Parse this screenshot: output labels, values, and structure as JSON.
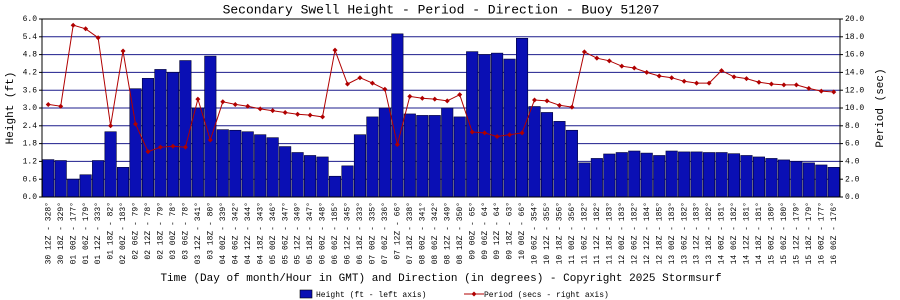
{
  "chart_data": {
    "type": "bar",
    "title": "Secondary Swell Height - Period - Direction - Buoy 51207",
    "x_label": "Time (Day of month/Hour in GMT) and Direction (in degrees) - Copyright 2025 Stormsurf",
    "y_label": "Height (ft)",
    "y2_label": "Period (sec)",
    "categories": [
      "30 12Z - 328°",
      "30 18Z - 329°",
      "01 00Z - 177°",
      "01 06Z - 179°",
      "01 12Z - 333°",
      "01 18Z - 82°",
      "02 00Z - 183°",
      "02 06Z - 79°",
      "02 12Z - 78°",
      "02 18Z - 79°",
      "03 00Z - 78°",
      "03 06Z - 78°",
      "03 12Z - 341°",
      "03 18Z - 80°",
      "04 00Z - 339°",
      "04 06Z - 342°",
      "04 12Z - 344°",
      "04 18Z - 343°",
      "05 00Z - 346°",
      "05 06Z - 347°",
      "05 12Z - 349°",
      "05 18Z - 347°",
      "06 00Z - 348°",
      "06 06Z - 185°",
      "06 12Z - 345°",
      "06 18Z - 333°",
      "07 00Z - 335°",
      "07 06Z - 336°",
      "07 12Z - 66°",
      "07 18Z - 338°",
      "08 00Z - 341°",
      "08 06Z - 342°",
      "08 12Z - 349°",
      "08 18Z - 350°",
      "09 00Z - 65°",
      "09 06Z - 64°",
      "09 12Z - 64°",
      "09 18Z - 63°",
      "10 00Z - 66°",
      "10 06Z - 354°",
      "10 12Z - 355°",
      "10 18Z - 356°",
      "11 00Z - 356°",
      "11 06Z - 182°",
      "11 12Z - 182°",
      "11 18Z - 183°",
      "12 00Z - 183°",
      "12 06Z - 182°",
      "12 12Z - 184°",
      "12 18Z - 185°",
      "13 00Z - 183°",
      "13 06Z - 182°",
      "13 12Z - 183°",
      "13 18Z - 182°",
      "14 00Z - 181°",
      "14 06Z - 182°",
      "14 12Z - 181°",
      "14 18Z - 181°",
      "15 00Z - 180°",
      "15 06Z - 180°",
      "15 12Z - 179°",
      "15 18Z - 179°",
      "16 00Z - 177°",
      "16 06Z - 176°"
    ],
    "series": [
      {
        "name": "Height (ft - left axis)",
        "type": "bar",
        "color": "#0a0fb4",
        "values": [
          1.26,
          1.23,
          0.6,
          0.75,
          1.23,
          2.2,
          1.0,
          3.65,
          4.0,
          4.3,
          4.2,
          4.6,
          3.0,
          4.75,
          2.27,
          2.25,
          2.2,
          2.1,
          2.0,
          1.7,
          1.5,
          1.4,
          1.35,
          0.7,
          1.05,
          2.1,
          2.7,
          3.0,
          5.5,
          2.8,
          2.75,
          2.75,
          3.0,
          2.7,
          4.9,
          4.8,
          4.85,
          4.65,
          5.35,
          3.05,
          2.85,
          2.55,
          2.25,
          1.15,
          1.3,
          1.45,
          1.5,
          1.55,
          1.48,
          1.4,
          1.55,
          1.52,
          1.52,
          1.5,
          1.5,
          1.46,
          1.4,
          1.35,
          1.3,
          1.25,
          1.2,
          1.15,
          1.08,
          1.0
        ]
      },
      {
        "name": "Period (secs - right axis)",
        "type": "line",
        "axis": "y2",
        "color": "#b00000",
        "values": [
          10.4,
          10.2,
          19.3,
          18.9,
          17.9,
          8.0,
          16.4,
          8.2,
          5.1,
          5.6,
          5.7,
          5.6,
          11.0,
          6.4,
          10.7,
          10.4,
          10.2,
          9.9,
          9.7,
          9.5,
          9.3,
          9.2,
          9.0,
          16.5,
          12.7,
          13.4,
          12.8,
          12.1,
          5.9,
          11.3,
          11.1,
          11.0,
          10.8,
          11.5,
          7.3,
          7.2,
          6.8,
          7.0,
          7.2,
          10.9,
          10.8,
          10.3,
          10.1,
          16.3,
          15.6,
          15.3,
          14.7,
          14.5,
          14.0,
          13.6,
          13.4,
          13.0,
          12.8,
          12.8,
          14.2,
          13.5,
          13.3,
          12.9,
          12.7,
          12.6,
          12.6,
          12.2,
          11.9,
          11.8
        ]
      }
    ],
    "ylim": [
      0,
      6
    ],
    "yticks": [
      {
        "value": 0,
        "label": "0.0"
      },
      0.6,
      1.2,
      1.8,
      2.4,
      {
        "value": 3,
        "label": "3.0"
      },
      3.6,
      4.2,
      4.8,
      5.4,
      {
        "value": 6,
        "label": "6.0"
      }
    ],
    "y2lim": [
      0,
      20
    ],
    "y2ticks": [
      {
        "value": 0,
        "label": "0.0"
      },
      {
        "value": 2,
        "label": "2.0"
      },
      {
        "value": 4,
        "label": "4.0"
      },
      {
        "value": 6,
        "label": "6.0"
      },
      {
        "value": 8,
        "label": "8.0"
      },
      {
        "value": 10,
        "label": "10.0"
      },
      {
        "value": 12,
        "label": "12.0"
      },
      {
        "value": 14,
        "label": "14.0"
      },
      {
        "value": 16,
        "label": "16.0"
      },
      {
        "value": 18,
        "label": "18.0"
      },
      {
        "value": 20,
        "label": "20.0"
      }
    ],
    "grid": true,
    "grid_color": "#1c1c8c",
    "legend": "bottom"
  }
}
